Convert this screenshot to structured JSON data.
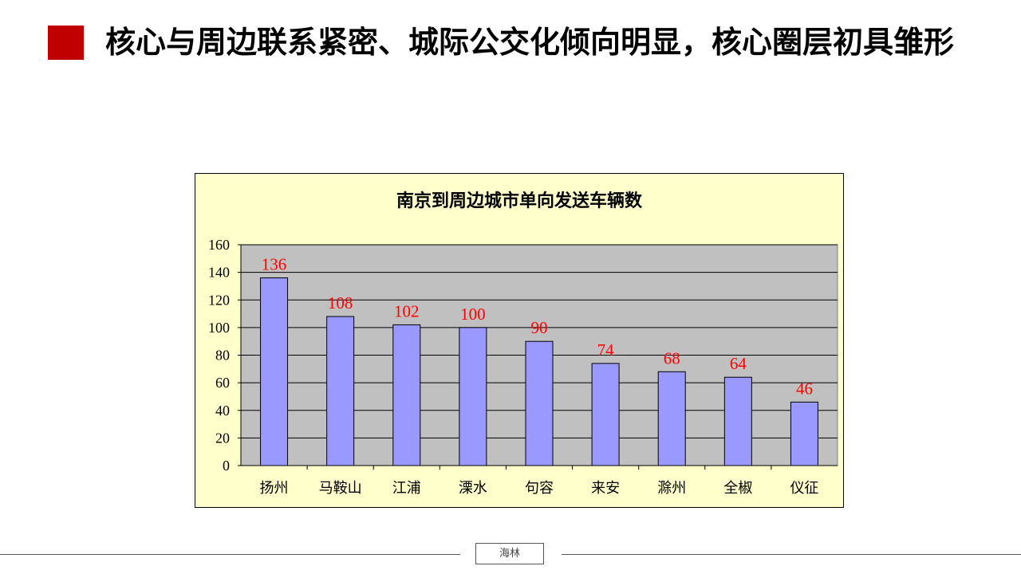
{
  "header": {
    "title": "核心与周边联系紧密、城际公交化倾向明显，核心圈层初具雏形",
    "accent_color": "#c00000"
  },
  "footer": {
    "label": "海林"
  },
  "chart_data": {
    "type": "bar",
    "title": "南京到周边城市单向发送车辆数",
    "categories": [
      "扬州",
      "马鞍山",
      "江浦",
      "溧水",
      "句容",
      "来安",
      "滁州",
      "全椒",
      "仪征"
    ],
    "values": [
      136,
      108,
      102,
      100,
      90,
      74,
      68,
      64,
      46
    ],
    "ylim": [
      0,
      160
    ],
    "yticks": [
      0,
      20,
      40,
      60,
      80,
      100,
      120,
      140,
      160
    ],
    "xlabel": "",
    "ylabel": "",
    "grid": true,
    "data_labels": true,
    "colors": {
      "bar": "#9999ff",
      "plot_bg": "#c0c0c0",
      "chart_bg": "#ffffcc",
      "label": "#ff0000"
    }
  }
}
